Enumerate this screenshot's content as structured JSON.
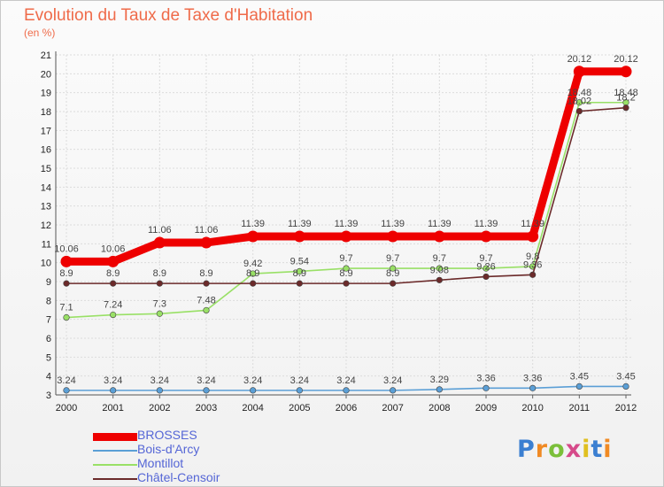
{
  "chart_data": {
    "type": "line",
    "title": "Evolution du Taux de Taxe d'Habitation",
    "subtitle": "(en %)",
    "categories": [
      "2000",
      "2001",
      "2002",
      "2003",
      "2004",
      "2005",
      "2006",
      "2007",
      "2008",
      "2009",
      "2010",
      "2011",
      "2012"
    ],
    "ylim": [
      3,
      21
    ],
    "yticks": [
      3,
      4,
      5,
      6,
      7,
      8,
      9,
      10,
      11,
      12,
      13,
      14,
      15,
      16,
      17,
      18,
      19,
      20,
      21
    ],
    "grid": true,
    "legend_position": "bottom-left",
    "series": [
      {
        "name": "BROSSES",
        "color": "#ee0000",
        "style": "thick",
        "values": [
          10.06,
          10.06,
          11.06,
          11.06,
          11.39,
          11.39,
          11.39,
          11.39,
          11.39,
          11.39,
          11.39,
          20.12,
          20.12
        ],
        "labels": [
          "10.06",
          "10.06",
          "11.06",
          "11.06",
          "11.39",
          "11.39",
          "11.39",
          "11.39",
          "11.39",
          "11.39",
          "11.39",
          "20.12",
          "20.12"
        ]
      },
      {
        "name": "Bois-d'Arcy",
        "color": "#5b9fd6",
        "style": "thin",
        "values": [
          3.24,
          3.24,
          3.24,
          3.24,
          3.24,
          3.24,
          3.24,
          3.24,
          3.29,
          3.36,
          3.36,
          3.45,
          3.45
        ],
        "labels": [
          "3.24",
          "3.24",
          "3.24",
          "3.24",
          "3.24",
          "3.24",
          "3.24",
          "3.24",
          "3.29",
          "3.36",
          "3.36",
          "3.45",
          "3.45"
        ]
      },
      {
        "name": "Montillot",
        "color": "#99e066",
        "style": "thin",
        "values": [
          7.1,
          7.24,
          7.3,
          7.48,
          9.42,
          9.54,
          9.7,
          9.7,
          9.7,
          9.7,
          9.8,
          18.48,
          18.48
        ],
        "labels": [
          "7.1",
          "7.24",
          "7.3",
          "7.48",
          "9.42",
          "9.54",
          "9.7",
          "9.7",
          "9.7",
          "9.7",
          "9.8",
          "18.48",
          "18.48"
        ]
      },
      {
        "name": "Châtel-Censoir",
        "color": "#6b2a2a",
        "style": "thin",
        "values": [
          8.9,
          8.9,
          8.9,
          8.9,
          8.9,
          8.9,
          8.9,
          8.9,
          9.08,
          9.26,
          9.36,
          18.02,
          18.2
        ],
        "labels": [
          "8.9",
          "8.9",
          "8.9",
          "8.9",
          "8.9",
          "8.9",
          "8.9",
          "8.9",
          "9.08",
          "9.26",
          "9.36",
          "18.02",
          "18.2"
        ]
      }
    ]
  },
  "logo": {
    "letters": [
      "P",
      "r",
      "o",
      "x",
      "i",
      "t",
      "i"
    ],
    "colors": [
      "#3b7fd1",
      "#f08a24",
      "#7bbf3a",
      "#d64a8a",
      "#e0c020",
      "#3b7fd1",
      "#f08a24"
    ]
  }
}
